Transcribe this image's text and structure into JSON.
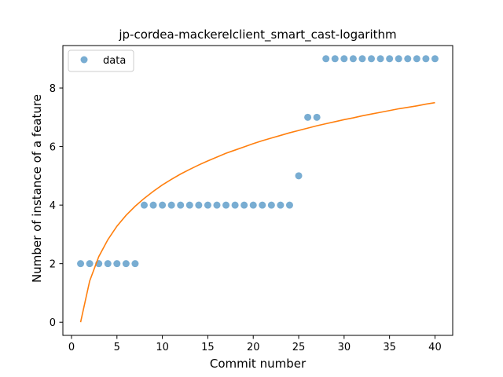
{
  "chart_data": {
    "type": "scatter",
    "title": "jp-cordea-mackerelclient_smart_cast-logarithm",
    "xlabel": "Commit number",
    "ylabel": "Number of instance of a feature",
    "xlim": [
      -0.95,
      41.95
    ],
    "ylim": [
      -0.45,
      9.45
    ],
    "xticks": [
      0,
      5,
      10,
      15,
      20,
      25,
      30,
      35,
      40
    ],
    "yticks": [
      0,
      2,
      4,
      6,
      8
    ],
    "grid": false,
    "legend": {
      "position": "top-left",
      "entries": [
        "data"
      ]
    },
    "series": [
      {
        "name": "data",
        "kind": "scatter",
        "color": "#1f77b4",
        "x": [
          1,
          2,
          3,
          4,
          5,
          6,
          7,
          8,
          9,
          10,
          11,
          12,
          13,
          14,
          15,
          16,
          17,
          18,
          19,
          20,
          21,
          22,
          23,
          24,
          25,
          26,
          27,
          28,
          29,
          30,
          31,
          32,
          33,
          34,
          35,
          36,
          37,
          38,
          39,
          40
        ],
        "y": [
          2,
          2,
          2,
          2,
          2,
          2,
          2,
          4,
          4,
          4,
          4,
          4,
          4,
          4,
          4,
          4,
          4,
          4,
          4,
          4,
          4,
          4,
          4,
          4,
          5,
          7,
          7,
          9,
          9,
          9,
          9,
          9,
          9,
          9,
          9,
          9,
          9,
          9,
          9,
          9
        ]
      },
      {
        "kind": "line",
        "color": "#ff7f0e",
        "x": [
          1,
          2,
          3,
          4,
          5,
          6,
          7,
          8,
          9,
          10,
          11,
          12,
          13,
          14,
          15,
          16,
          17,
          18,
          19,
          20,
          21,
          22,
          23,
          24,
          25,
          26,
          27,
          28,
          29,
          30,
          31,
          32,
          33,
          34,
          35,
          36,
          37,
          38,
          39,
          40
        ],
        "y": [
          0.0,
          1.41,
          2.24,
          2.82,
          3.28,
          3.65,
          3.96,
          4.23,
          4.47,
          4.69,
          4.88,
          5.06,
          5.22,
          5.37,
          5.51,
          5.64,
          5.77,
          5.88,
          5.99,
          6.1,
          6.2,
          6.29,
          6.38,
          6.47,
          6.55,
          6.63,
          6.71,
          6.78,
          6.85,
          6.92,
          6.98,
          7.05,
          7.11,
          7.17,
          7.23,
          7.29,
          7.34,
          7.39,
          7.45,
          7.5
        ]
      }
    ]
  }
}
